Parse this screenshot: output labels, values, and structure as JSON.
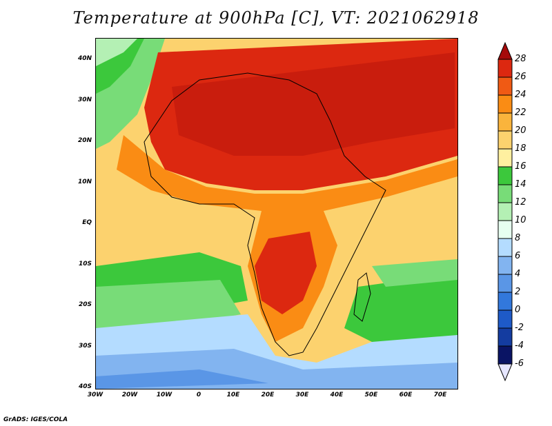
{
  "title": "Temperature at 900hPa [C], VT: 2021062918",
  "footer": "GrADS: IGES/COLA",
  "map": {
    "lat_range": [
      -40,
      45
    ],
    "lon_range": [
      -30,
      75
    ],
    "lat_ticks": [
      "40N",
      "30N",
      "20N",
      "10N",
      "EQ",
      "10S",
      "20S",
      "30S",
      "40S"
    ],
    "lon_ticks": [
      "30W",
      "20W",
      "10W",
      "0",
      "10E",
      "20E",
      "30E",
      "40E",
      "50E",
      "60E",
      "70E"
    ]
  },
  "colorbar": {
    "labels": [
      "28",
      "26",
      "24",
      "22",
      "20",
      "18",
      "16",
      "14",
      "12",
      "10",
      "8",
      "6",
      "4",
      "2",
      "0",
      "-2",
      "-4",
      "-6"
    ],
    "colors": {
      "gt28": "#a50a0a",
      "26_28": "#dc2810",
      "24_26": "#f05a14",
      "22_24": "#fa8c14",
      "20_22": "#fab43c",
      "18_20": "#fcd26e",
      "16_18": "#fff0a0",
      "14_16": "#3cc83c",
      "12_14": "#78dc78",
      "10_12": "#b4f0b4",
      "8_10": "#e6fff0",
      "6_8": "#b4dcff",
      "4_6": "#82b4f0",
      "2_4": "#5a96e6",
      "0_2": "#3278dc",
      "m2_0": "#1e5ac8",
      "m4_m2": "#143ca0",
      "lt_m6": "#0a1464",
      "below": "#e6e6ff"
    }
  }
}
